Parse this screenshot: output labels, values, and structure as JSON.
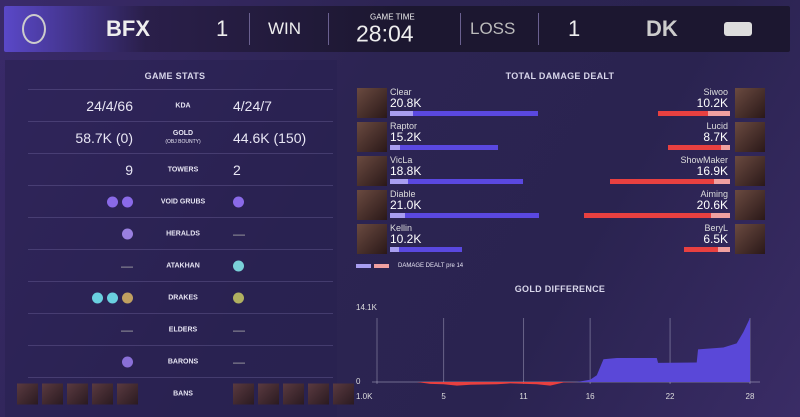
{
  "header": {
    "team_left": "BFX",
    "score_left": "1",
    "result_left": "WIN",
    "game_time_label": "GAME TIME",
    "game_time": "28:04",
    "result_right": "LOSS",
    "score_right": "1",
    "team_right": "DK"
  },
  "stats": {
    "title": "GAME STATS",
    "rows": [
      {
        "label": "KDA",
        "left": "24/4/66",
        "right": "4/24/7"
      },
      {
        "label": "GOLD",
        "sublabel": "(OBJ BOUNTY)",
        "left": "58.7K (0)",
        "right": "44.6K (150)"
      },
      {
        "label": "TOWERS",
        "left": "9",
        "right": "2"
      },
      {
        "label": "VOID GRUBS",
        "left_icons": [
          "void-grub-icon",
          "void-grub-icon"
        ],
        "right_icons": [
          "void-grub-icon"
        ]
      },
      {
        "label": "HERALDS",
        "left_icons": [
          "herald-icon"
        ],
        "right": "—"
      },
      {
        "label": "ATAKHAN",
        "left": "—",
        "right_icons": [
          "atakhan-icon"
        ]
      },
      {
        "label": "DRAKES",
        "left_icons": [
          "cloud-drake-icon",
          "cloud-drake-icon",
          "mountain-drake-icon"
        ],
        "right_icons": [
          "chemtech-drake-icon"
        ]
      },
      {
        "label": "ELDERS",
        "left": "—",
        "right": "—"
      },
      {
        "label": "BARONS",
        "left_icons": [
          "baron-icon"
        ],
        "right": "—"
      },
      {
        "label": "BANS"
      }
    ]
  },
  "damage": {
    "title": "TOTAL DAMAGE DEALT",
    "legend": "DAMAGE DEALT pre 14",
    "left": [
      {
        "name": "Clear",
        "value": "20.8K",
        "total": 20.8,
        "pre14": 3.2
      },
      {
        "name": "Raptor",
        "value": "15.2K",
        "total": 15.2,
        "pre14": 1.4
      },
      {
        "name": "VicLa",
        "value": "18.8K",
        "total": 18.8,
        "pre14": 2.5
      },
      {
        "name": "Diable",
        "value": "21.0K",
        "total": 21.0,
        "pre14": 2.1
      },
      {
        "name": "Kellin",
        "value": "10.2K",
        "total": 10.2,
        "pre14": 1.2
      }
    ],
    "right": [
      {
        "name": "Siwoo",
        "value": "10.2K",
        "total": 10.2,
        "pre14": 3.1
      },
      {
        "name": "Lucid",
        "value": "8.7K",
        "total": 8.7,
        "pre14": 1.2
      },
      {
        "name": "ShowMaker",
        "value": "16.9K",
        "total": 16.9,
        "pre14": 2.2
      },
      {
        "name": "Aiming",
        "value": "20.6K",
        "total": 20.6,
        "pre14": 2.7
      },
      {
        "name": "BeryL",
        "value": "6.5K",
        "total": 6.5,
        "pre14": 1.7
      }
    ],
    "colors": {
      "blue": "#5a48e0",
      "blue_pre": "#a89ef0",
      "red": "#e84040",
      "red_pre": "#f0a0a0"
    }
  },
  "gold": {
    "title": "GOLD DIFFERENCE",
    "ymax_label": "14.1K",
    "zero_label": "0",
    "min_label": "1.0K",
    "x_ticks": [
      "5",
      "11",
      "16",
      "22",
      "28"
    ],
    "chart_data": {
      "type": "area",
      "x": [
        0,
        3,
        4,
        5,
        6,
        7,
        9,
        10,
        12,
        13,
        14,
        15,
        16,
        16.5,
        17,
        18,
        21,
        21.1,
        24,
        24.1,
        26,
        27,
        27.5,
        28
      ],
      "y": [
        0,
        0,
        -0.4,
        -0.5,
        -0.8,
        -0.6,
        -0.5,
        -0.3,
        -0.5,
        -0.8,
        -0.1,
        0,
        0.5,
        1.5,
        5,
        5.3,
        5.3,
        4.2,
        4.3,
        7.2,
        7.6,
        8.5,
        11,
        14.1
      ],
      "ylim": [
        -1.0,
        14.1
      ],
      "xlim": [
        0,
        28
      ]
    }
  }
}
